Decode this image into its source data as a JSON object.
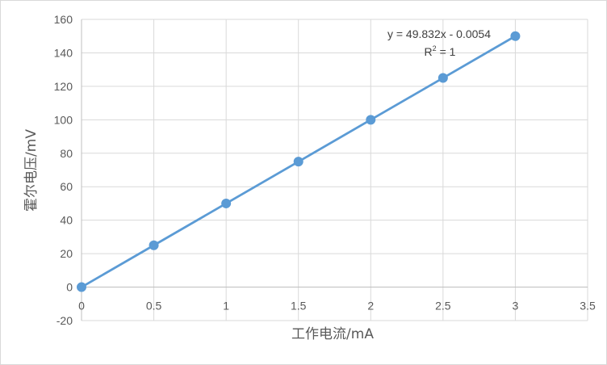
{
  "chart_data": {
    "type": "scatter",
    "xlabel": "工作电流/mA",
    "ylabel": "霍尔电压/mV",
    "xlim": [
      0,
      3.5
    ],
    "ylim": [
      -20,
      160
    ],
    "xticks": [
      "0",
      "0.5",
      "1",
      "1.5",
      "2",
      "2.5",
      "3",
      "3.5"
    ],
    "yticks": [
      "-20",
      "0",
      "20",
      "40",
      "60",
      "80",
      "100",
      "120",
      "140",
      "160"
    ],
    "grid": true,
    "series": [
      {
        "x": [
          0,
          0.5,
          1,
          1.5,
          2,
          2.5,
          3
        ],
        "y": [
          0,
          25,
          50,
          75,
          100,
          125,
          150
        ],
        "color": "#5b9bd5",
        "line": "straight-line-with-markers"
      }
    ],
    "trendline": {
      "equation": "y = 49.832x - 0.0054",
      "r2_prefix": "R",
      "r2_sup": "2",
      "r2_suffix": " = 1"
    }
  }
}
